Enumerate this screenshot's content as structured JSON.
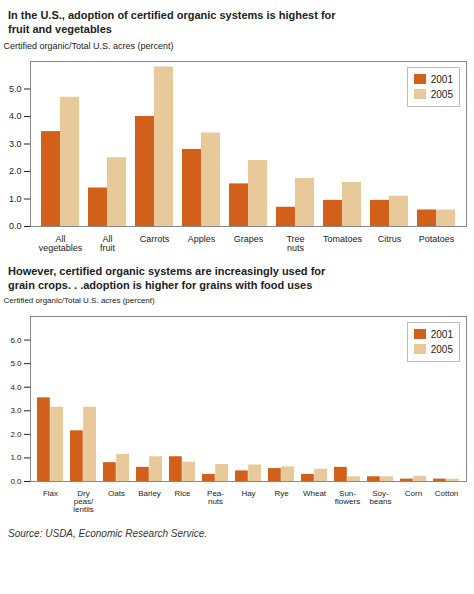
{
  "chart_data": [
    {
      "type": "bar",
      "title": "In the U.S., adoption of certified organic systems is highest for\nfruit and vegetables",
      "ylabel": "Certified organic/Total U.S. acres (percent)",
      "categories": [
        "All\nvegetables",
        "All\nfruit",
        "Carrots",
        "Apples",
        "Grapes",
        "Tree\nnuts",
        "Tomatoes",
        "Citrus",
        "Potatoes"
      ],
      "series": [
        {
          "name": "2001",
          "color": "#D2601A",
          "values": [
            3.45,
            1.4,
            4.0,
            2.8,
            1.55,
            0.7,
            0.95,
            0.95,
            0.6
          ]
        },
        {
          "name": "2005",
          "color": "#E8C99A",
          "values": [
            4.7,
            2.5,
            5.8,
            3.4,
            2.4,
            1.75,
            1.6,
            1.1,
            0.6
          ]
        }
      ],
      "ylim": [
        0,
        6
      ],
      "yticks": [
        0,
        1,
        2,
        3,
        4,
        5
      ],
      "grid": false,
      "legend": "upper right"
    },
    {
      "type": "bar",
      "title": "However, certified organic systems are increasingly used for\ngrain crops. . .adoption is higher for grains with food uses",
      "ylabel": "Certified organic/Total U.S. acres (percent)",
      "categories": [
        "Flax",
        "Dry\npeas/\nlentils",
        "Oats",
        "Barley",
        "Rice",
        "Pea-\nnuts",
        "Hay",
        "Rye",
        "Wheat",
        "Sun-\nflowers",
        "Soy-\nbeans",
        "Corn",
        "Cotton"
      ],
      "series": [
        {
          "name": "2001",
          "color": "#D2601A",
          "values": [
            3.55,
            2.15,
            0.8,
            0.6,
            1.05,
            0.3,
            0.45,
            0.55,
            0.3,
            0.6,
            0.2,
            0.1,
            0.1
          ]
        },
        {
          "name": "2005",
          "color": "#E8C99A",
          "values": [
            3.15,
            3.15,
            1.15,
            1.05,
            0.82,
            0.72,
            0.7,
            0.62,
            0.52,
            0.2,
            0.2,
            0.22,
            0.1
          ]
        }
      ],
      "ylim": [
        0,
        7
      ],
      "yticks": [
        0,
        1,
        2,
        3,
        4,
        5,
        6
      ],
      "grid": false,
      "legend": "upper right",
      "caption": "Source: USDA, Economic Research Service."
    }
  ]
}
